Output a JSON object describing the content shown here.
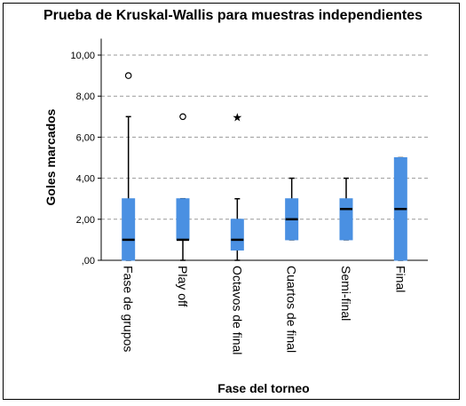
{
  "chart_data": {
    "type": "boxplot",
    "title": "Prueba de Kruskal-Wallis para muestras independientes",
    "xlabel": "Fase del torneo",
    "ylabel": "Goles marcados",
    "ylim": [
      0,
      10.8
    ],
    "yticks": [
      0,
      2,
      4,
      6,
      8,
      10
    ],
    "ytick_labels": [
      ",00",
      "2,00",
      "4,00",
      "6,00",
      "8,00",
      "10,00"
    ],
    "grid": "horizontal dashed",
    "box_color": "#4a90e2",
    "categories": [
      "Fase de grupos",
      "Play off",
      "Octavos de final",
      "Cuartos de final",
      "Semi-final",
      "Final"
    ],
    "boxes": [
      {
        "min": 0,
        "q1": 0,
        "median": 1,
        "q3": 3,
        "max": 7
      },
      {
        "min": 0,
        "q1": 1,
        "median": 1,
        "q3": 3,
        "max": 3
      },
      {
        "min": 0,
        "q1": 0.5,
        "median": 1,
        "q3": 2,
        "max": 3
      },
      {
        "min": 1,
        "q1": 1,
        "median": 2,
        "q3": 3,
        "max": 4
      },
      {
        "min": 1,
        "q1": 1,
        "median": 2.5,
        "q3": 3,
        "max": 4
      },
      {
        "min": 0,
        "q1": 0,
        "median": 2.5,
        "q3": 5,
        "max": 5
      }
    ],
    "outliers": [
      {
        "category": "Fase de grupos",
        "value": 9,
        "marker": "circle"
      },
      {
        "category": "Play off",
        "value": 7,
        "marker": "circle"
      },
      {
        "category": "Octavos de final",
        "value": 7,
        "marker": "star"
      }
    ]
  }
}
